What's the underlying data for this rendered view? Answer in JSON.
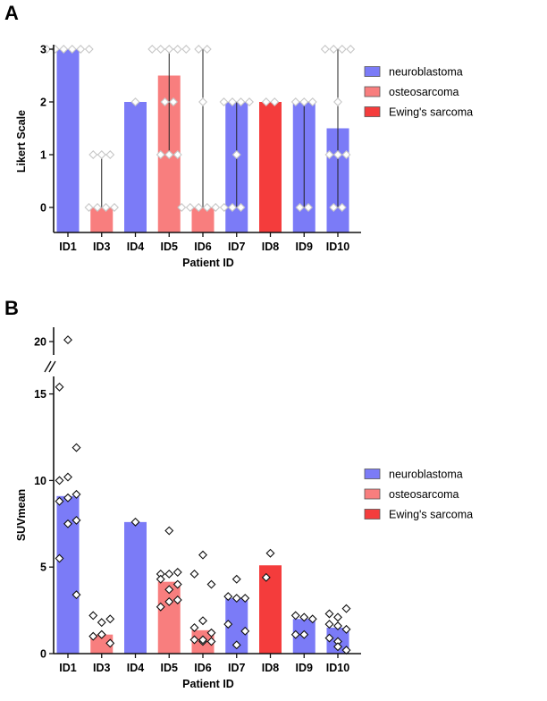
{
  "colors": {
    "neuroblastoma": "#7b7bf7",
    "osteosarcoma": "#f87e7e",
    "Ewing's sarcoma": "#f43c3c"
  },
  "chart_data": [
    {
      "panel_label": "A",
      "type": "bar",
      "categories": [
        "ID1",
        "ID3",
        "ID4",
        "ID5",
        "ID6",
        "ID7",
        "ID8",
        "ID9",
        "ID10"
      ],
      "groups": [
        "neuroblastoma",
        "osteosarcoma",
        "neuroblastoma",
        "osteosarcoma",
        "osteosarcoma",
        "neuroblastoma",
        "Ewing's sarcoma",
        "neuroblastoma",
        "neuroblastoma"
      ],
      "values": [
        3,
        0,
        2,
        2.5,
        0,
        2,
        2,
        2,
        1.5
      ],
      "ranges": [
        null,
        [
          0,
          1
        ],
        null,
        [
          1,
          3
        ],
        [
          0,
          3
        ],
        [
          0,
          2
        ],
        null,
        [
          0,
          2
        ],
        [
          0,
          3
        ]
      ],
      "points": [
        [
          3,
          3,
          3,
          3,
          3,
          3
        ],
        [
          1,
          1,
          1,
          0,
          0,
          0,
          0
        ],
        [
          2
        ],
        [
          3,
          3,
          3,
          3,
          3,
          2,
          2,
          1,
          1,
          1
        ],
        [
          3,
          3,
          2,
          0,
          0,
          0,
          0,
          0,
          0
        ],
        [
          2,
          2,
          2,
          2,
          1,
          0,
          0
        ],
        [
          2,
          2
        ],
        [
          2,
          2,
          2,
          0,
          0
        ],
        [
          3,
          3,
          3,
          3,
          2,
          1,
          1,
          1,
          0,
          0
        ]
      ],
      "xlabel": "Patient ID",
      "ylabel": "Likert Scale",
      "yticks": [
        0,
        1,
        2,
        3
      ],
      "ylim": [
        -0.5,
        3
      ],
      "legend": [
        "neuroblastoma",
        "osteosarcoma",
        "Ewing's sarcoma"
      ],
      "legend_position": "right",
      "grid": false
    },
    {
      "panel_label": "B",
      "type": "bar",
      "categories": [
        "ID1",
        "ID3",
        "ID4",
        "ID5",
        "ID6",
        "ID7",
        "ID8",
        "ID9",
        "ID10"
      ],
      "groups": [
        "neuroblastoma",
        "osteosarcoma",
        "neuroblastoma",
        "osteosarcoma",
        "osteosarcoma",
        "neuroblastoma",
        "Ewing's sarcoma",
        "neuroblastoma",
        "neuroblastoma"
      ],
      "values": [
        9.1,
        1.1,
        7.6,
        4.15,
        1.35,
        3.2,
        5.1,
        2.0,
        1.5
      ],
      "points": [
        [
          20.1,
          15.4,
          11.9,
          10.2,
          10.0,
          9.2,
          9.0,
          8.8,
          7.7,
          7.5,
          5.5,
          3.4
        ],
        [
          1.8,
          2.2,
          2.0,
          1.1,
          1.0,
          0.6,
          1.1
        ],
        [
          7.6
        ],
        [
          7.1,
          4.6,
          4.7,
          4.6,
          4.3,
          4.0,
          3.7,
          2.7,
          3.1,
          3.0
        ],
        [
          5.7,
          4.6,
          4.0,
          1.9,
          1.5,
          1.2,
          0.7,
          0.8,
          0.7,
          0.8
        ],
        [
          4.3,
          3.3,
          3.2,
          3.2,
          1.7,
          1.3,
          0.5
        ],
        [
          5.8,
          4.4
        ],
        [
          2.1,
          2.2,
          2.0,
          1.1,
          1.1
        ],
        [
          2.1,
          2.3,
          2.6,
          1.6,
          1.7,
          1.4,
          0.7,
          0.9,
          0.2,
          0.4
        ]
      ],
      "xlabel": "Patient ID",
      "ylabel": "SUVmean",
      "yticks": [
        0,
        5,
        10,
        15
      ],
      "yticks_upper": [
        20
      ],
      "ylim": [
        0,
        15.5
      ],
      "ylim_upper": [
        19.5,
        20.5
      ],
      "axis_break": true,
      "legend": [
        "neuroblastoma",
        "osteosarcoma",
        "Ewing's sarcoma"
      ],
      "legend_position": "right",
      "grid": false
    }
  ]
}
